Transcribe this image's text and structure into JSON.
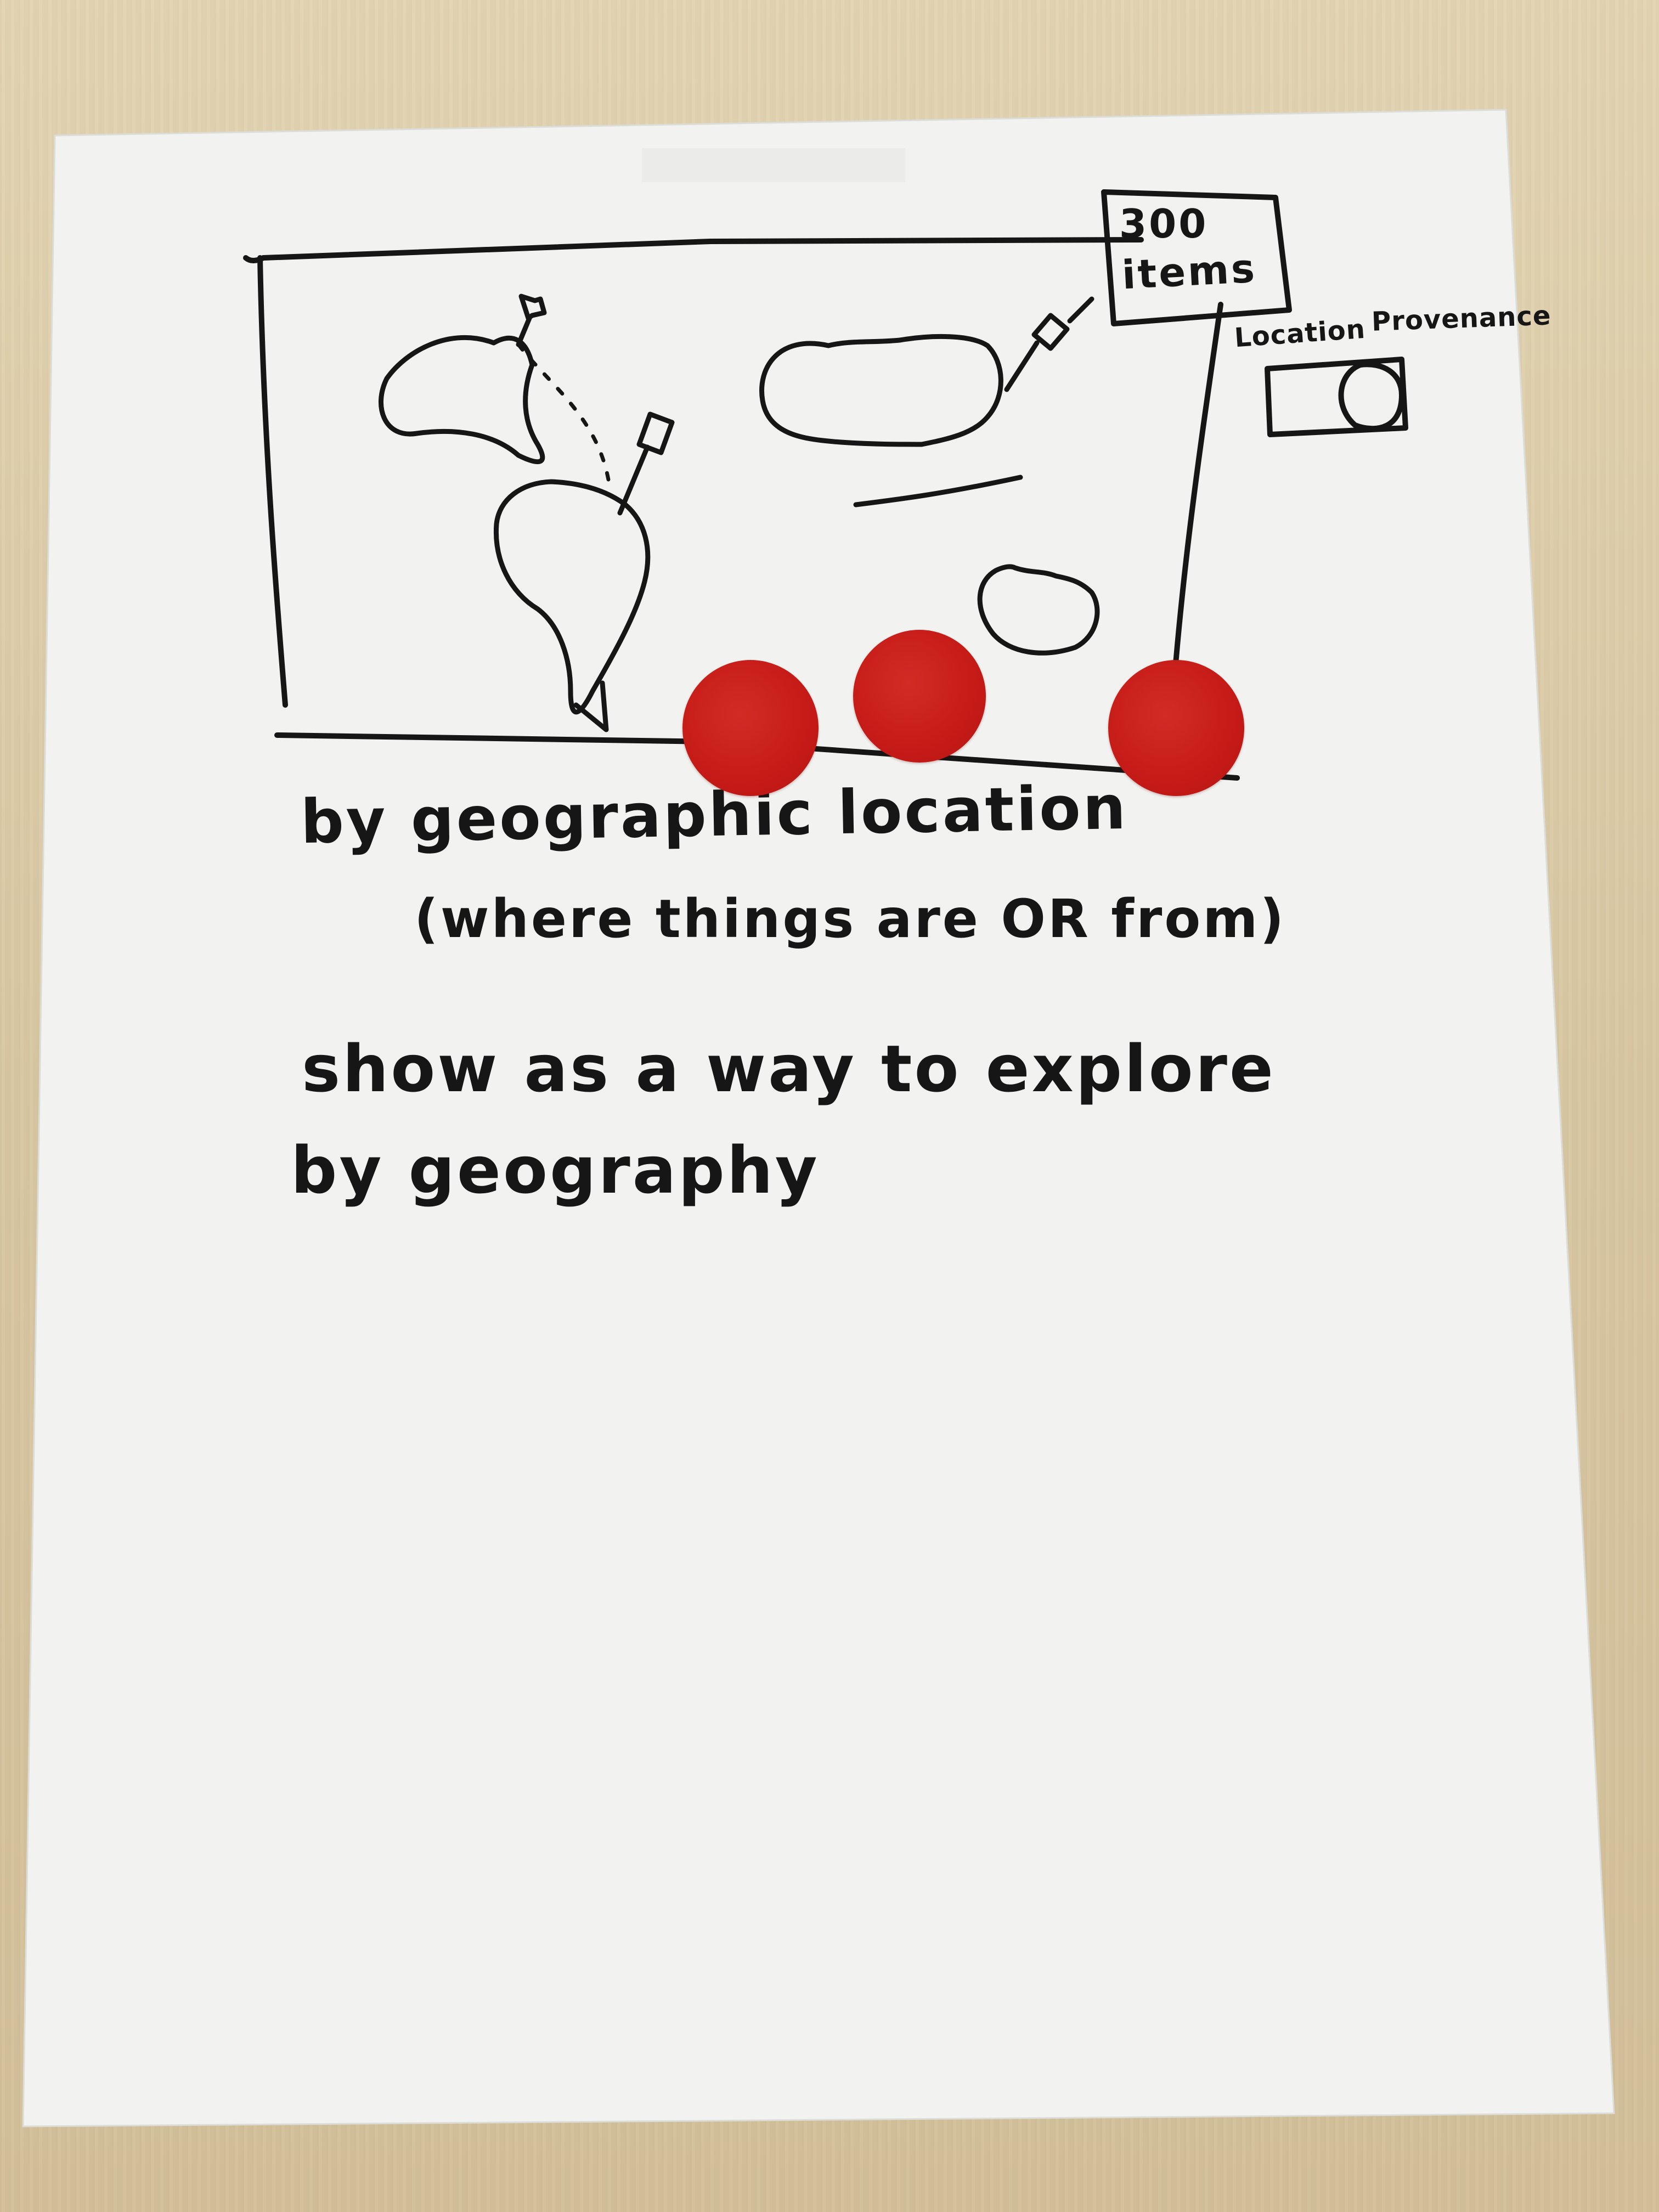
{
  "sketch": {
    "count_box_number": "300",
    "count_box_label": "items",
    "legend_label_location": "Location",
    "legend_label_provenance": "Provenance",
    "caption_line1": "by geographic location",
    "caption_line2": "(where things are OR from)",
    "note_line1": "show as a way to explore",
    "note_line2": "by geography"
  },
  "stickers": {
    "count": 3,
    "color": "#c41a17"
  },
  "colors": {
    "ink": "#161616",
    "paper": "#f2f3f1"
  }
}
